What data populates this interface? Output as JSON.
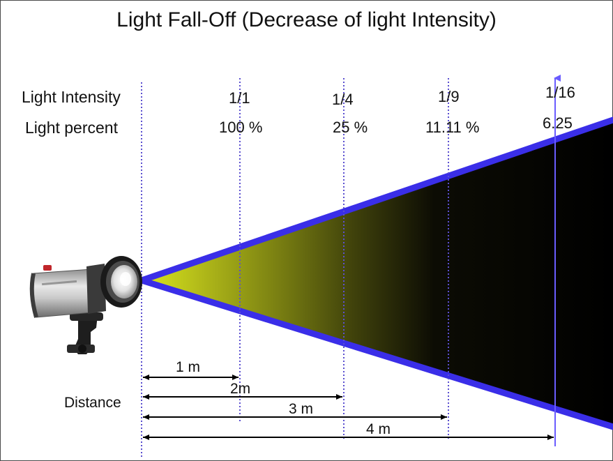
{
  "title": "Light Fall-Off (Decrease of light Intensity)",
  "row_labels": {
    "intensity": "Light Intensity",
    "percent": "Light percent",
    "distance": "Distance"
  },
  "markers": [
    {
      "intensity": "1/1",
      "percent": "100 %",
      "distance": "1 m"
    },
    {
      "intensity": "1/4",
      "percent": "25 %",
      "distance": "2m"
    },
    {
      "intensity": "1/9",
      "percent": "11.11 %",
      "distance": "3 m"
    },
    {
      "intensity": "1/16",
      "percent": "6.25",
      "distance": "4 m"
    }
  ],
  "colors": {
    "beam_edge": "#3a2ee8",
    "beam_start": "#d6e21a",
    "beam_end": "#000000",
    "guide_line": "#5b4fd0",
    "axis_line": "#6a5cff"
  },
  "icons": {
    "light_source": "studio-flash-icon"
  }
}
